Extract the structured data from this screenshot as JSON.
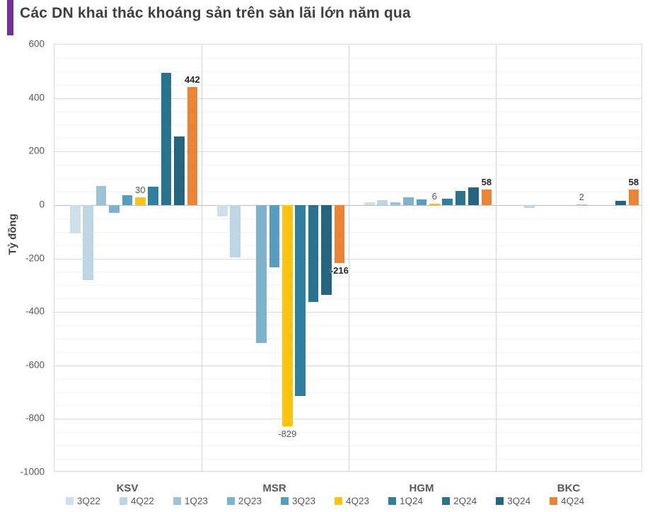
{
  "title": "Các DN khai thác khoáng sản trên sàn lãi lớn năm qua",
  "accent_color": "#7030a0",
  "chart_data": {
    "type": "bar",
    "title": "Các DN khai thác khoáng sản trên sàn lãi lớn năm qua",
    "ylabel": "Tỷ đồng",
    "xlabel": "",
    "ylim": [
      -1000,
      600
    ],
    "yticks": [
      600,
      400,
      200,
      0,
      -200,
      -400,
      -600,
      -800,
      -1000
    ],
    "grid": true,
    "legend_position": "bottom",
    "categories": [
      "KSV",
      "MSR",
      "HGM",
      "BKC"
    ],
    "series": [
      {
        "name": "3Q22",
        "color": "#cfdfe9",
        "values": [
          -105,
          -43,
          10,
          0
        ]
      },
      {
        "name": "4Q22",
        "color": "#bed5e3",
        "values": [
          -280,
          -195,
          18,
          -10
        ]
      },
      {
        "name": "1Q23",
        "color": "#9dc3d8",
        "values": [
          72,
          0,
          10,
          0
        ]
      },
      {
        "name": "2Q23",
        "color": "#7db1cc",
        "values": [
          -30,
          -515,
          28,
          0
        ]
      },
      {
        "name": "3Q23",
        "color": "#569dc0",
        "values": [
          38,
          -234,
          20,
          0
        ]
      },
      {
        "name": "4Q23",
        "color": "#fdc30f",
        "values": [
          30,
          -829,
          6,
          2
        ],
        "labels": [
          "30",
          "-829",
          "6",
          "2"
        ],
        "label_bold": false
      },
      {
        "name": "1Q24",
        "color": "#2f809e",
        "values": [
          68,
          -715,
          24,
          0
        ]
      },
      {
        "name": "2Q24",
        "color": "#2a7390",
        "values": [
          495,
          -362,
          53,
          0
        ]
      },
      {
        "name": "3Q24",
        "color": "#25647e",
        "values": [
          255,
          -336,
          65,
          16
        ],
        "labels": [
          "",
          "",
          "",
          ""
        ],
        "label_bold": true
      },
      {
        "name": "4Q24",
        "color": "#ee8336",
        "values": [
          442,
          -216,
          58,
          58
        ],
        "labels": [
          "442",
          "-216",
          "58",
          "58"
        ],
        "label_bold": true
      }
    ]
  }
}
